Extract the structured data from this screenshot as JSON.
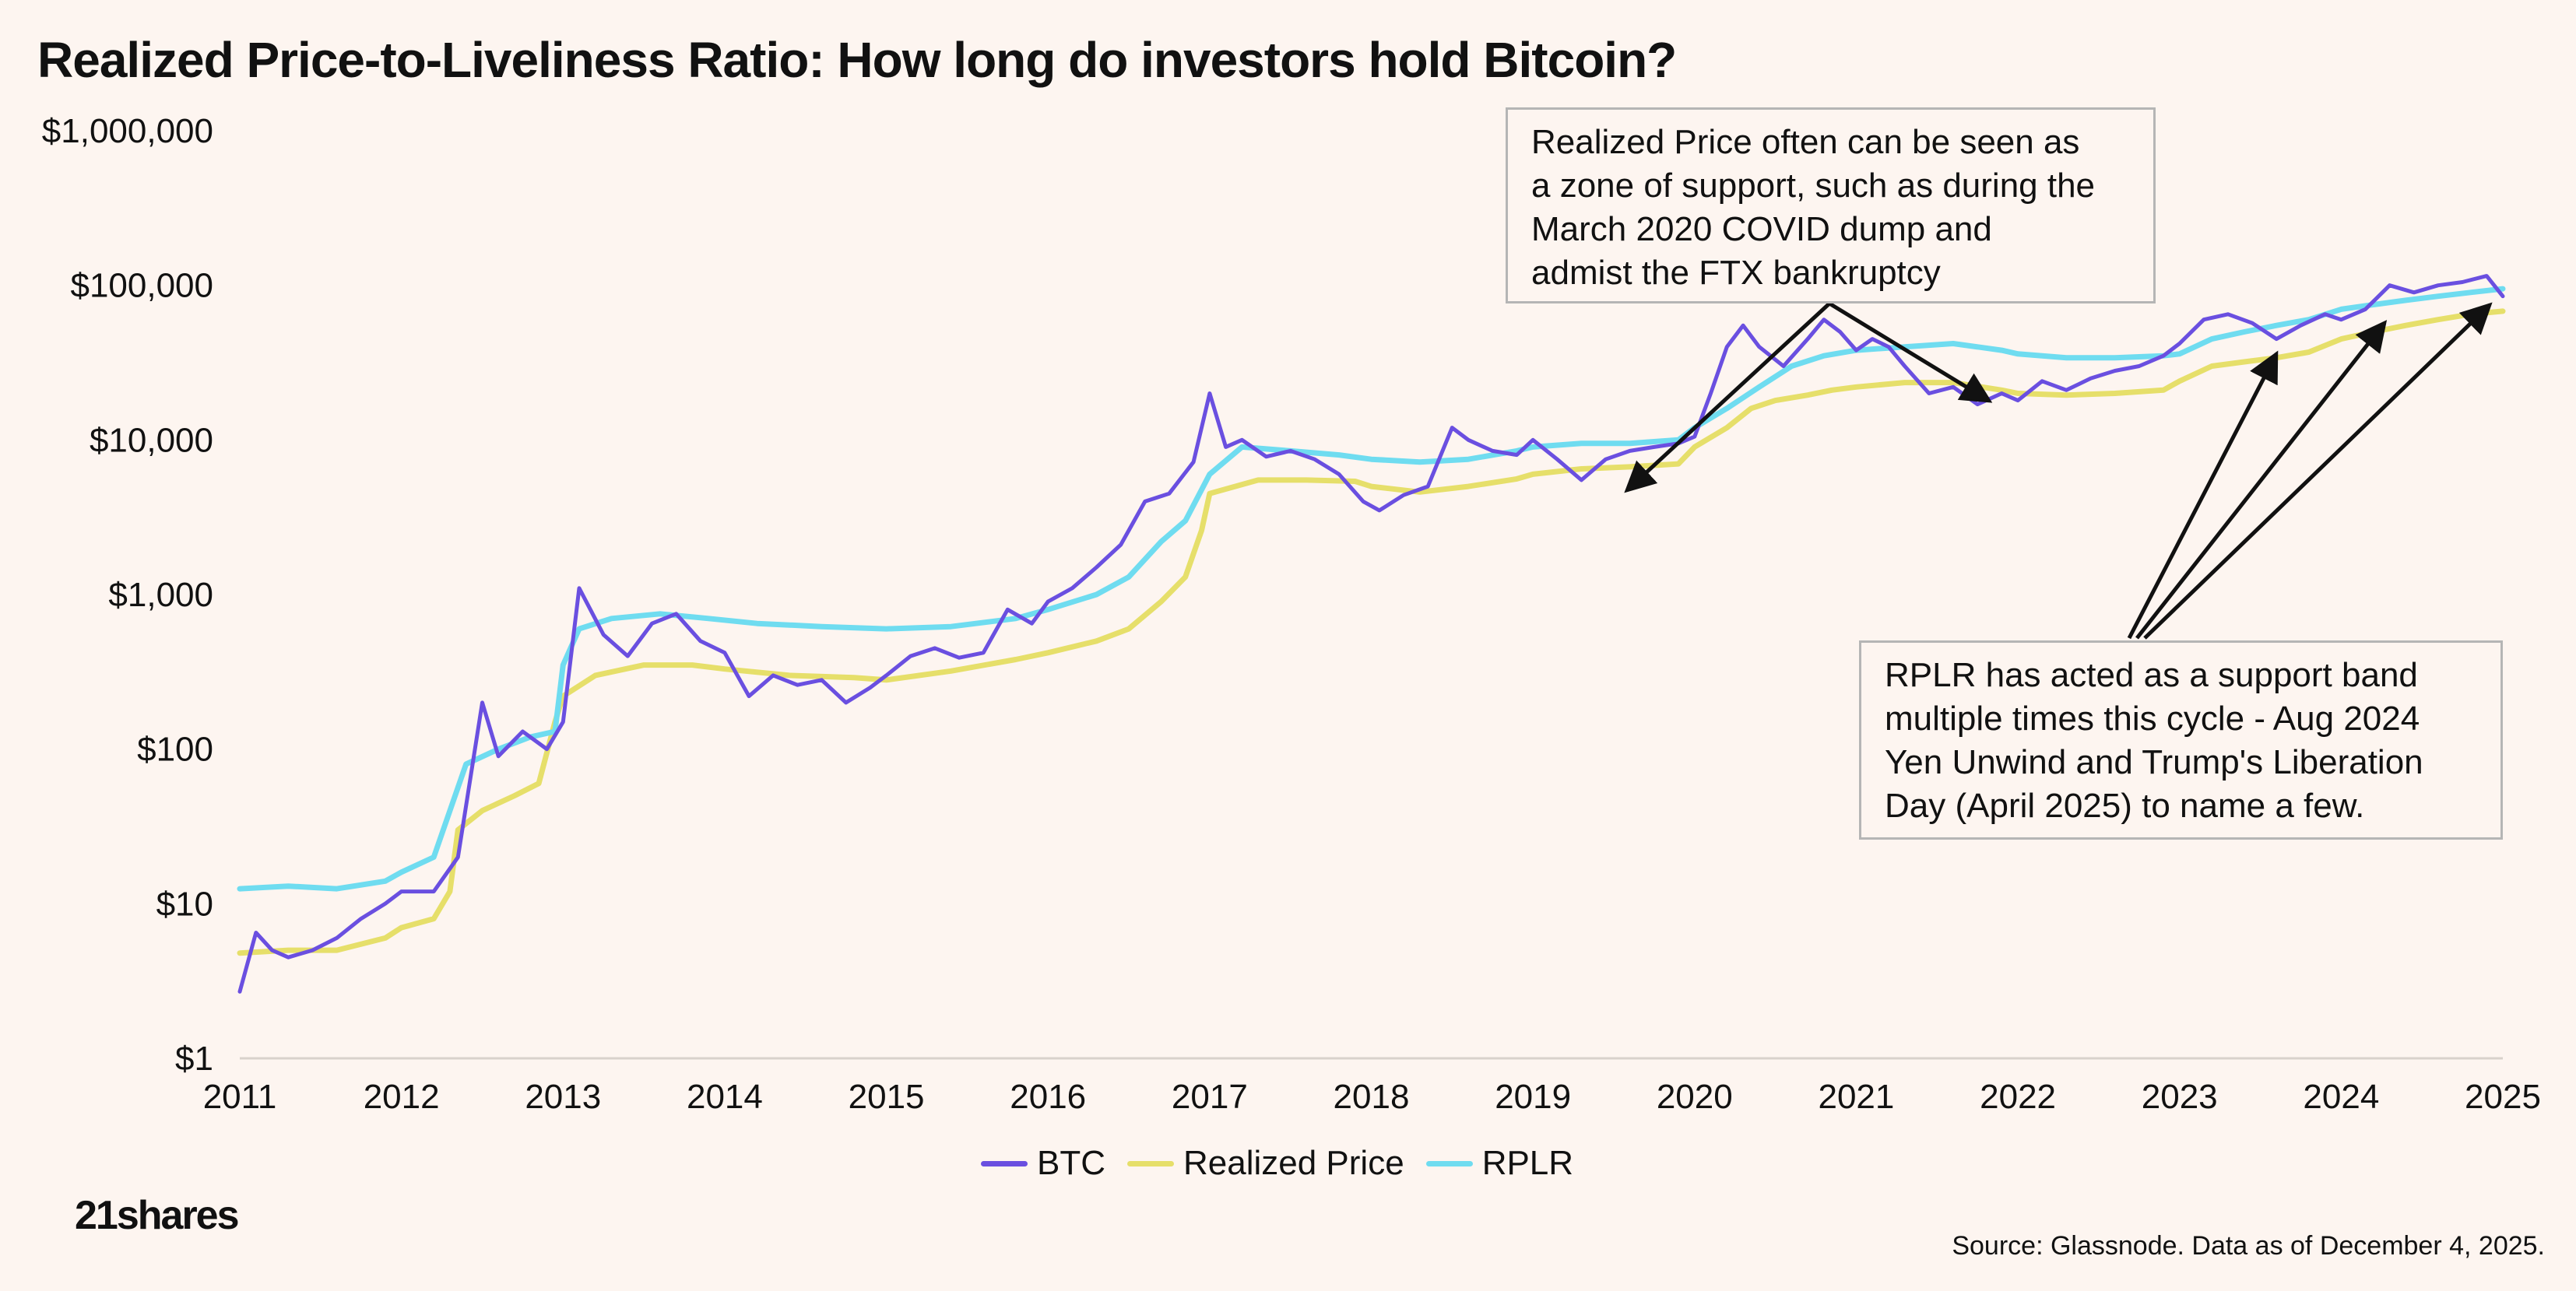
{
  "title": "Realized Price-to-Liveliness Ratio: How long do investors hold Bitcoin?",
  "annotations": {
    "top": [
      "Realized Price often can be seen as",
      "a zone of support, such as during the",
      "March 2020 COVID dump and",
      "admist the FTX bankruptcy"
    ],
    "bottom": [
      "RPLR has acted as a support band",
      "multiple times this cycle - Aug 2024",
      "Yen Unwind and Trump's Liberation",
      "Day (April 2025) to name a few."
    ]
  },
  "legend": [
    {
      "label": "BTC",
      "color": "#6a4fe0"
    },
    {
      "label": "Realized Price",
      "color": "#e6df6a"
    },
    {
      "label": "RPLR",
      "color": "#6fdcf0"
    }
  ],
  "logo": "21shares",
  "source": "Source: Glassnode. Data as of December 4, 2025.",
  "chart_data": {
    "type": "line",
    "title": "Realized Price-to-Liveliness Ratio: How long do investors hold Bitcoin?",
    "yscale": "log",
    "ylim": [
      1,
      1000000
    ],
    "xlim": [
      2011,
      2025
    ],
    "y_ticks": [
      1,
      10,
      100,
      1000,
      10000,
      100000,
      1000000
    ],
    "y_tick_labels": [
      "$1",
      "$10",
      "$100",
      "$1,000",
      "$10,000",
      "$100,000",
      "$1,000,000"
    ],
    "x_ticks": [
      2011,
      2012,
      2013,
      2014,
      2015,
      2016,
      2017,
      2018,
      2019,
      2020,
      2021,
      2022,
      2023,
      2024,
      2025
    ],
    "x_tick_labels": [
      "2011",
      "2012",
      "2013",
      "2014",
      "2015",
      "2016",
      "2017",
      "2018",
      "2019",
      "2020",
      "2021",
      "2022",
      "2023",
      "2024",
      "2025"
    ],
    "series": [
      {
        "name": "BTC",
        "color": "#6a4fe0",
        "x": [
          2011.0,
          2011.1,
          2011.2,
          2011.3,
          2011.45,
          2011.6,
          2011.75,
          2011.9,
          2012.0,
          2012.2,
          2012.35,
          2012.5,
          2012.6,
          2012.75,
          2012.9,
          2013.0,
          2013.1,
          2013.25,
          2013.4,
          2013.55,
          2013.7,
          2013.85,
          2014.0,
          2014.15,
          2014.3,
          2014.45,
          2014.6,
          2014.75,
          2014.9,
          2015.0,
          2015.15,
          2015.3,
          2015.45,
          2015.6,
          2015.75,
          2015.9,
          2016.0,
          2016.15,
          2016.3,
          2016.45,
          2016.6,
          2016.75,
          2016.9,
          2017.0,
          2017.1,
          2017.2,
          2017.35,
          2017.5,
          2017.65,
          2017.8,
          2017.95,
          2018.05,
          2018.2,
          2018.35,
          2018.5,
          2018.6,
          2018.75,
          2018.9,
          2019.0,
          2019.15,
          2019.3,
          2019.45,
          2019.6,
          2019.75,
          2019.9,
          2020.0,
          2020.1,
          2020.2,
          2020.3,
          2020.4,
          2020.55,
          2020.7,
          2020.8,
          2020.9,
          2021.0,
          2021.1,
          2021.2,
          2021.3,
          2021.45,
          2021.6,
          2021.75,
          2021.9,
          2022.0,
          2022.15,
          2022.3,
          2022.45,
          2022.6,
          2022.75,
          2022.9,
          2023.0,
          2023.15,
          2023.3,
          2023.45,
          2023.6,
          2023.75,
          2023.9,
          2024.0,
          2024.15,
          2024.3,
          2024.45,
          2024.6,
          2024.75,
          2024.9,
          2025.0
        ],
        "values": [
          2.7,
          6.5,
          5,
          4.5,
          5,
          6,
          8,
          10,
          12,
          12,
          20,
          200,
          90,
          130,
          100,
          150,
          1100,
          550,
          400,
          650,
          750,
          500,
          420,
          220,
          300,
          260,
          280,
          200,
          250,
          300,
          400,
          450,
          390,
          420,
          800,
          650,
          900,
          1100,
          1500,
          2100,
          4000,
          4500,
          7200,
          20000,
          9000,
          10000,
          7800,
          8500,
          7500,
          6000,
          4000,
          3500,
          4400,
          5000,
          12000,
          10000,
          8500,
          8000,
          10000,
          7500,
          5500,
          7500,
          8500,
          9000,
          9500,
          10500,
          20000,
          40000,
          55000,
          40000,
          30000,
          45000,
          60000,
          50000,
          38000,
          45000,
          40000,
          30000,
          20000,
          22000,
          17000,
          20000,
          18000,
          24000,
          21000,
          25000,
          28000,
          30000,
          35000,
          42000,
          60000,
          65000,
          57000,
          45000,
          55000,
          65000,
          60000,
          70000,
          100000,
          90000,
          100000,
          105000,
          115000,
          85000
        ]
      },
      {
        "name": "Realized Price",
        "color": "#e6df6a",
        "x": [
          2011.0,
          2011.3,
          2011.6,
          2011.9,
          2012.0,
          2012.2,
          2012.3,
          2012.35,
          2012.5,
          2012.7,
          2012.85,
          2012.95,
          2013.0,
          2013.2,
          2013.5,
          2013.8,
          2014.0,
          2014.4,
          2014.8,
          2015.0,
          2015.4,
          2015.8,
          2016.0,
          2016.3,
          2016.5,
          2016.7,
          2016.85,
          2016.95,
          2017.0,
          2017.3,
          2017.6,
          2017.9,
          2018.0,
          2018.3,
          2018.6,
          2018.9,
          2019.0,
          2019.3,
          2019.6,
          2019.9,
          2020.0,
          2020.2,
          2020.35,
          2020.5,
          2020.7,
          2020.85,
          2021.0,
          2021.3,
          2021.6,
          2021.9,
          2022.0,
          2022.3,
          2022.6,
          2022.9,
          2023.0,
          2023.2,
          2023.4,
          2023.6,
          2023.8,
          2024.0,
          2024.2,
          2024.4,
          2024.6,
          2024.8,
          2025.0
        ],
        "values": [
          4.8,
          5,
          5,
          6,
          7,
          8,
          12,
          30,
          40,
          50,
          60,
          150,
          220,
          300,
          350,
          350,
          330,
          300,
          290,
          280,
          320,
          380,
          420,
          500,
          600,
          900,
          1300,
          2600,
          4500,
          5500,
          5500,
          5400,
          5000,
          4600,
          5000,
          5600,
          6000,
          6500,
          6700,
          7000,
          9000,
          12000,
          16000,
          18000,
          19500,
          21000,
          22000,
          23500,
          23500,
          21000,
          20000,
          19500,
          20000,
          21000,
          24000,
          30000,
          32000,
          34000,
          37000,
          45000,
          50000,
          55000,
          60000,
          65000,
          68000
        ]
      },
      {
        "name": "RPLR",
        "color": "#6fdcf0",
        "x": [
          2011.0,
          2011.3,
          2011.6,
          2011.9,
          2012.0,
          2012.2,
          2012.4,
          2012.6,
          2012.8,
          2012.95,
          2013.0,
          2013.1,
          2013.3,
          2013.6,
          2013.9,
          2014.2,
          2014.6,
          2015.0,
          2015.4,
          2015.8,
          2016.0,
          2016.3,
          2016.5,
          2016.7,
          2016.85,
          2017.0,
          2017.2,
          2017.5,
          2017.8,
          2018.0,
          2018.3,
          2018.6,
          2018.9,
          2019.0,
          2019.3,
          2019.6,
          2019.9,
          2020.0,
          2020.2,
          2020.4,
          2020.6,
          2020.8,
          2021.0,
          2021.3,
          2021.6,
          2021.9,
          2022.0,
          2022.3,
          2022.6,
          2022.9,
          2023.0,
          2023.2,
          2023.4,
          2023.6,
          2023.8,
          2024.0,
          2024.2,
          2024.4,
          2024.6,
          2024.8,
          2025.0
        ],
        "values": [
          12.5,
          13,
          12.5,
          14,
          16,
          20,
          80,
          100,
          120,
          130,
          350,
          600,
          700,
          750,
          700,
          650,
          620,
          600,
          620,
          700,
          800,
          1000,
          1300,
          2200,
          3000,
          6000,
          9000,
          8500,
          8000,
          7500,
          7200,
          7500,
          8500,
          9000,
          9500,
          9500,
          10000,
          12000,
          16000,
          22000,
          30000,
          35000,
          38000,
          40000,
          42000,
          38000,
          36000,
          34000,
          34000,
          35000,
          36000,
          45000,
          50000,
          55000,
          60000,
          70000,
          75000,
          80000,
          85000,
          90000,
          95000
        ]
      }
    ]
  }
}
